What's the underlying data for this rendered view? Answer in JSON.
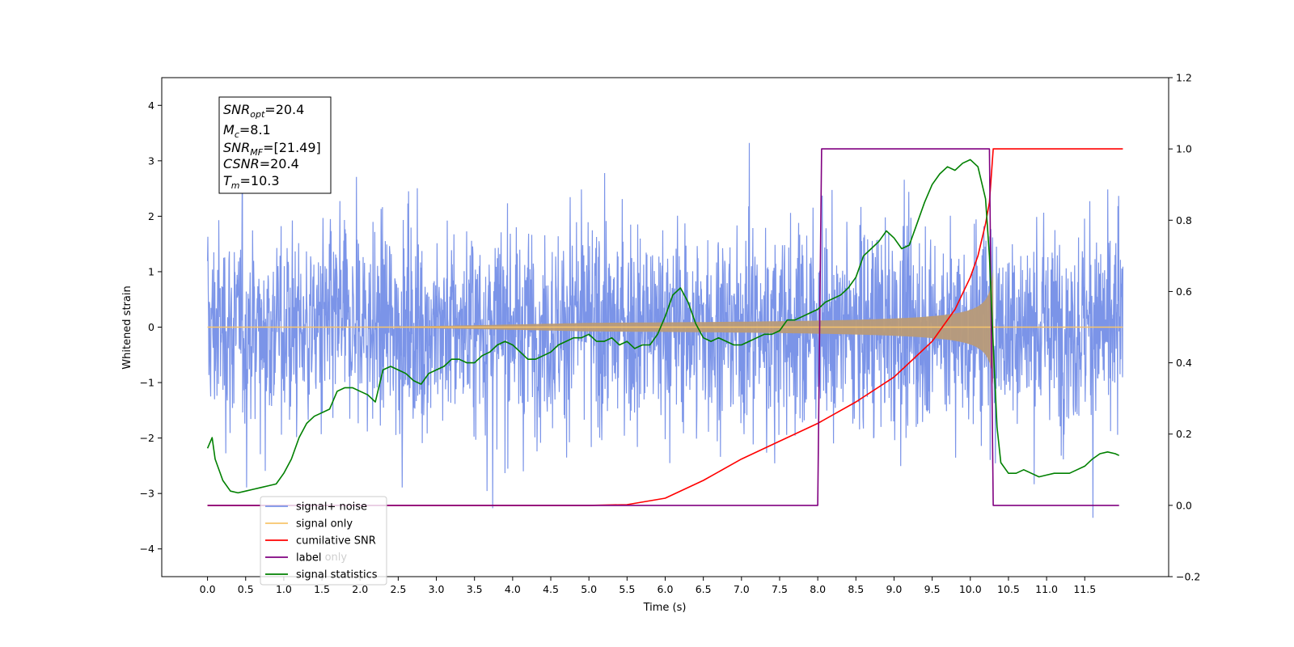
{
  "chart_data": {
    "type": "line",
    "xlabel": "Time (s)",
    "ylabel_left": "Whitened strain",
    "ylabel_right": "",
    "xlim": [
      -0.6,
      12.6
    ],
    "ylim_left": [
      -4.5,
      4.5
    ],
    "ylim_right": [
      -0.2,
      1.2
    ],
    "x_ticks": [
      "0.0",
      "0.5",
      "1.0",
      "1.5",
      "2.0",
      "2.5",
      "3.0",
      "3.5",
      "4.0",
      "4.5",
      "5.0",
      "5.5",
      "6.0",
      "6.5",
      "7.0",
      "7.5",
      "8.0",
      "8.5",
      "9.0",
      "9.5",
      "10.0",
      "10.5",
      "11.0",
      "11.5"
    ],
    "y_ticks_left": [
      "4",
      "3",
      "2",
      "1",
      "0",
      "−1",
      "−2",
      "−3",
      "−4"
    ],
    "y_ticks_right": [
      "1.2",
      "1.0",
      "0.8",
      "0.6",
      "0.4",
      "0.2",
      "0.0",
      "−0.2"
    ],
    "grid": false,
    "legend_position": "lower-left",
    "legend": [
      {
        "label": "signal+ noise",
        "color": "#7B94E8"
      },
      {
        "label": "signal only",
        "color": "#F7C46C"
      },
      {
        "label": "cumilative SNR",
        "color": "#FF0000"
      },
      {
        "label": "label",
        "color": "#800080"
      },
      {
        "label": "signal statistics",
        "color": "#008000"
      }
    ],
    "hidden_legend_text": "label only",
    "info_box": {
      "snr_opt": {
        "base": "SNR",
        "sub": "opt",
        "value": "=20.4"
      },
      "mc": {
        "base": "M",
        "sub": "c",
        "value": "=8.1"
      },
      "snr_mf": {
        "base": "SNR",
        "sub": "MF",
        "value": "=[21.49]"
      },
      "csnr": {
        "base": "CSNR",
        "value": "=20.4"
      },
      "tm": {
        "base": "T",
        "sub": "m",
        "value": "=10.3"
      }
    },
    "series": [
      {
        "name": "signal+ noise",
        "axis": "left",
        "color": "#7B94E8",
        "description_range": [
          0,
          12
        ],
        "amplitude_envelope_approx": 2.3
      },
      {
        "name": "signal only",
        "axis": "left",
        "color": "#F7C46C",
        "chirp_end": 10.3,
        "peak_amplitude": 1.5
      },
      {
        "name": "cumilative SNR",
        "axis": "right",
        "color": "#FF0000",
        "x": [
          0.0,
          5.0,
          5.5,
          6.0,
          6.5,
          7.0,
          7.5,
          8.0,
          8.5,
          9.0,
          9.5,
          9.8,
          10.0,
          10.1,
          10.2,
          10.25,
          10.3,
          12.0
        ],
        "y": [
          0.0,
          0.0,
          0.002,
          0.02,
          0.07,
          0.13,
          0.18,
          0.23,
          0.29,
          0.36,
          0.46,
          0.55,
          0.64,
          0.7,
          0.79,
          0.85,
          1.0,
          1.0
        ]
      },
      {
        "name": "label",
        "axis": "right",
        "color": "#800080",
        "x": [
          0.0,
          8.0,
          8.05,
          10.25,
          10.3,
          11.95
        ],
        "y": [
          0.0,
          0.0,
          1.0,
          1.0,
          0.0,
          0.0
        ]
      },
      {
        "name": "signal statistics",
        "axis": "right",
        "color": "#008000",
        "x": [
          0.0,
          0.06,
          0.1,
          0.2,
          0.3,
          0.4,
          0.5,
          0.6,
          0.7,
          0.8,
          0.9,
          1.0,
          1.1,
          1.2,
          1.3,
          1.4,
          1.5,
          1.6,
          1.7,
          1.8,
          1.9,
          2.0,
          2.1,
          2.2,
          2.3,
          2.4,
          2.5,
          2.6,
          2.7,
          2.8,
          2.9,
          3.0,
          3.1,
          3.2,
          3.3,
          3.4,
          3.5,
          3.6,
          3.7,
          3.8,
          3.9,
          4.0,
          4.1,
          4.2,
          4.3,
          4.4,
          4.5,
          4.6,
          4.7,
          4.8,
          4.9,
          5.0,
          5.1,
          5.2,
          5.3,
          5.4,
          5.5,
          5.6,
          5.7,
          5.8,
          5.9,
          6.0,
          6.1,
          6.2,
          6.3,
          6.4,
          6.5,
          6.6,
          6.7,
          6.8,
          6.9,
          7.0,
          7.1,
          7.2,
          7.3,
          7.4,
          7.5,
          7.6,
          7.7,
          7.8,
          7.9,
          8.0,
          8.1,
          8.2,
          8.3,
          8.4,
          8.5,
          8.6,
          8.7,
          8.8,
          8.9,
          9.0,
          9.1,
          9.2,
          9.3,
          9.4,
          9.5,
          9.6,
          9.7,
          9.8,
          9.9,
          10.0,
          10.1,
          10.2,
          10.25,
          10.3,
          10.35,
          10.4,
          10.5,
          10.6,
          10.7,
          10.8,
          10.9,
          11.0,
          11.1,
          11.2,
          11.3,
          11.4,
          11.5,
          11.6,
          11.7,
          11.8,
          11.9,
          11.95
        ],
        "y": [
          0.16,
          0.19,
          0.13,
          0.07,
          0.04,
          0.035,
          0.04,
          0.045,
          0.05,
          0.055,
          0.06,
          0.09,
          0.13,
          0.19,
          0.23,
          0.25,
          0.26,
          0.27,
          0.32,
          0.33,
          0.33,
          0.32,
          0.31,
          0.29,
          0.38,
          0.39,
          0.38,
          0.37,
          0.35,
          0.34,
          0.37,
          0.38,
          0.39,
          0.41,
          0.41,
          0.4,
          0.4,
          0.42,
          0.43,
          0.45,
          0.46,
          0.45,
          0.43,
          0.41,
          0.41,
          0.42,
          0.43,
          0.45,
          0.46,
          0.47,
          0.47,
          0.48,
          0.46,
          0.46,
          0.47,
          0.45,
          0.46,
          0.44,
          0.45,
          0.45,
          0.48,
          0.53,
          0.59,
          0.61,
          0.57,
          0.51,
          0.47,
          0.46,
          0.47,
          0.46,
          0.45,
          0.45,
          0.46,
          0.47,
          0.48,
          0.48,
          0.49,
          0.52,
          0.52,
          0.53,
          0.54,
          0.55,
          0.57,
          0.58,
          0.59,
          0.61,
          0.64,
          0.7,
          0.72,
          0.74,
          0.77,
          0.75,
          0.72,
          0.73,
          0.79,
          0.85,
          0.9,
          0.93,
          0.95,
          0.94,
          0.96,
          0.97,
          0.95,
          0.86,
          0.7,
          0.45,
          0.22,
          0.12,
          0.09,
          0.09,
          0.1,
          0.09,
          0.08,
          0.085,
          0.09,
          0.09,
          0.09,
          0.1,
          0.11,
          0.13,
          0.145,
          0.15,
          0.145,
          0.14
        ]
      }
    ]
  }
}
